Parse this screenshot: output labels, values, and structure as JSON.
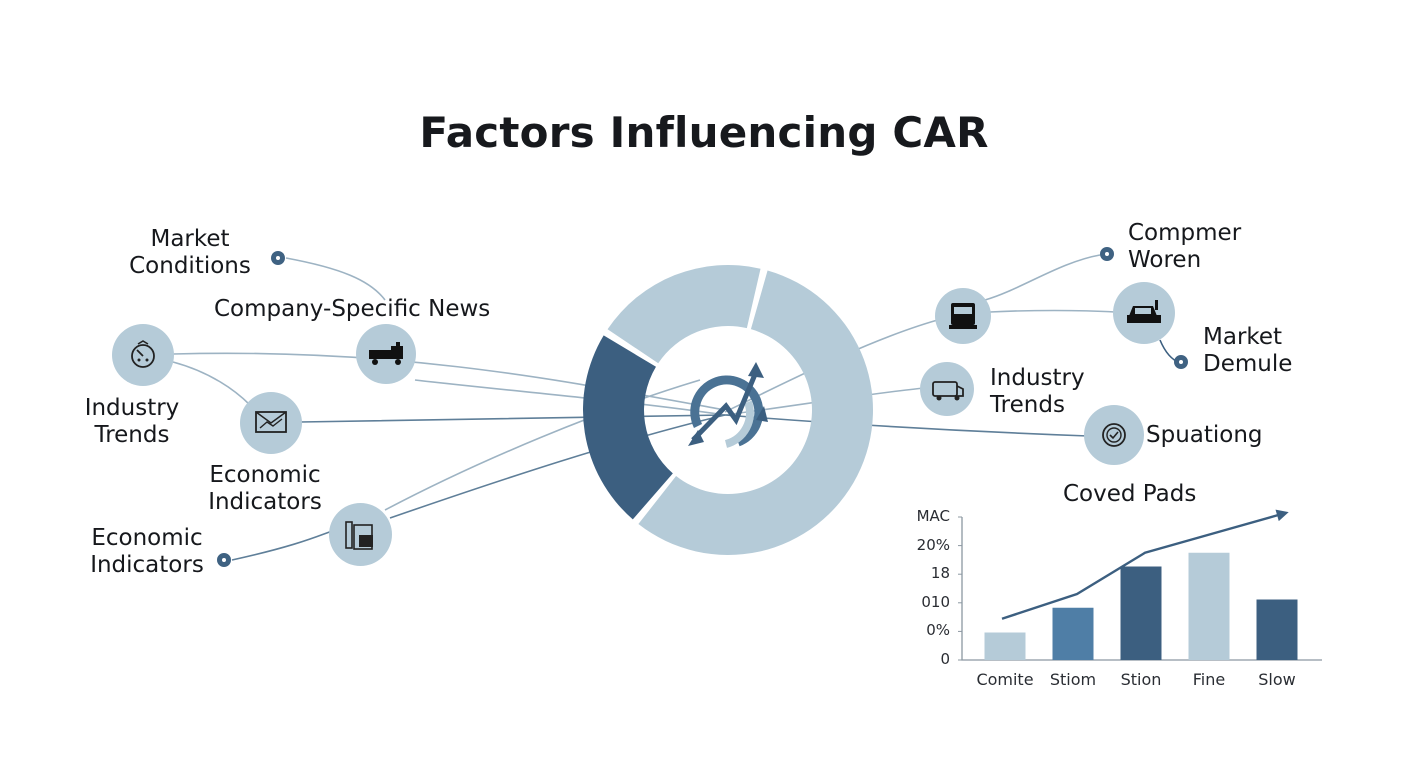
{
  "title": "Factors Influencing CAR",
  "left_labels": {
    "market_conditions": [
      "Market",
      "Conditions"
    ],
    "company_news": "Company-Specific News",
    "industry_trends": [
      "Industry",
      "Trends"
    ],
    "economic_indicators_mid": [
      "Economic",
      "Indicators"
    ],
    "economic_indicators_low": [
      "Economic",
      "Indicators"
    ]
  },
  "right_labels": {
    "consumer": [
      "Compmer",
      "Woren"
    ],
    "market_demand": [
      "Market",
      "Demule"
    ],
    "industry_trends": [
      "Industry",
      "Trends"
    ],
    "speculation": "Spuationg"
  },
  "icons": {
    "industry_trends_left": "gauge-icon",
    "company_news": "truck-icon",
    "economic_mid": "envelope-chart-icon",
    "economic_low": "tools-icon",
    "right_top": "truck-front-icon",
    "right_consumer": "car-icon",
    "right_industry": "van-icon",
    "right_speculation": "badge-check-icon",
    "center": "growth-cycle-icon"
  },
  "colors": {
    "dark": "#3c5f80",
    "light": "#b5cbd8",
    "mid": "#4f7ea6",
    "line": "#8aa5b8"
  },
  "donut": {
    "segments": [
      {
        "share": 0.23,
        "color": "#3c5f80"
      },
      {
        "share": 0.2,
        "color": "#b5cbd8"
      },
      {
        "share": 0.57,
        "color": "#b5cbd8"
      }
    ]
  },
  "chart_data": {
    "type": "bar",
    "title": "Coved Pads",
    "y_ticks": [
      "MAC",
      "20%",
      "18",
      "010",
      "0%",
      "0"
    ],
    "categories": [
      "Comite",
      "Stiom",
      "Stion",
      "Fine",
      "Slow"
    ],
    "values": [
      1.0,
      1.9,
      3.4,
      3.9,
      2.2
    ],
    "bar_colors": [
      "#b5cbd8",
      "#4f7ea6",
      "#3c5f80",
      "#b5cbd8",
      "#3c5f80"
    ],
    "trend": [
      1.5,
      2.4,
      3.9,
      4.6,
      5.3
    ],
    "ylim": [
      0,
      5.2
    ],
    "grid": false
  }
}
